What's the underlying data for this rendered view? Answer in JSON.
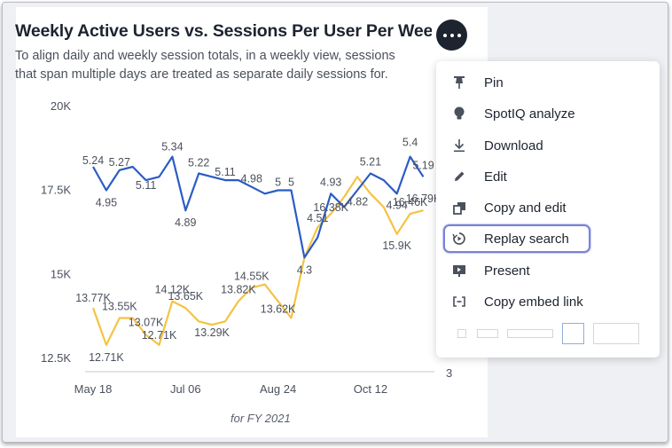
{
  "card": {
    "title": "Weekly Active Users vs. Sessions Per User Per Week,",
    "subtitle_line1": "To align daily and weekly session totals, in a weekly view, sessions",
    "subtitle_line2": "that span multiple days are treated as separate daily sessions for.",
    "footer": "for FY 2021",
    "right_axis_tick": "3"
  },
  "menu": {
    "items": [
      {
        "label": "Pin",
        "icon": "pin-icon"
      },
      {
        "label": "SpotIQ analyze",
        "icon": "bulb-icon"
      },
      {
        "label": "Download",
        "icon": "download-icon"
      },
      {
        "label": "Edit",
        "icon": "pencil-icon"
      },
      {
        "label": "Copy and edit",
        "icon": "copy-icon"
      },
      {
        "label": "Replay search",
        "icon": "replay-icon"
      },
      {
        "label": "Present",
        "icon": "present-icon"
      },
      {
        "label": "Copy embed link",
        "icon": "embed-icon"
      }
    ],
    "focused_item": "Replay search"
  },
  "colors": {
    "blue_series": "#2b5cc5",
    "yellow_series": "#f5c343",
    "focus_ring": "#7b83d6",
    "dark": "#1d232f"
  },
  "chart_data": {
    "type": "line",
    "title": "Weekly Active Users vs. Sessions Per User Per Week,",
    "xlabel": "for FY 2021",
    "ylim": [
      12500,
      20000
    ],
    "y_ticks": [
      "20K",
      "17.5K",
      "15K",
      "12.5K"
    ],
    "y_tick_values": [
      20000,
      17500,
      15000,
      12500
    ],
    "x_ticks": [
      "May 18",
      "Jul 06",
      "Aug 24",
      "Oct 12"
    ],
    "x_tick_weeks": [
      1,
      8,
      15,
      22
    ],
    "weeks": [
      1,
      2,
      3,
      4,
      5,
      6,
      7,
      8,
      9,
      10,
      11,
      12,
      13,
      14,
      15,
      16,
      17,
      18,
      19,
      20,
      21,
      22,
      23,
      24,
      25,
      26
    ],
    "series": [
      {
        "values": [
          18200,
          17500,
          18100,
          18200,
          17800,
          17900,
          18500,
          16900,
          18000,
          17900,
          17800,
          17800,
          17600,
          17400,
          17500,
          17500,
          15500,
          16100,
          17400,
          17000,
          17500,
          18000,
          17800,
          17400,
          18500,
          17900
        ],
        "labels": [
          "5.24",
          "4.95",
          "5.27",
          "",
          "5.11",
          "",
          "5.34",
          "4.89",
          "5.22",
          "",
          "5.11",
          "",
          "4.98",
          "",
          "5",
          "5",
          "4.3",
          "",
          "4.93",
          "",
          "4.82",
          "5.21",
          "",
          "4.94",
          "5.4",
          "5.19"
        ],
        "label_offsets": [
          -3,
          18,
          -5,
          0,
          10,
          0,
          -7,
          18,
          -8,
          0,
          -5,
          0,
          -5,
          0,
          -5,
          -5,
          18,
          0,
          -9,
          0,
          17,
          -9,
          0,
          17,
          -12,
          -9
        ]
      },
      {
        "values": [
          14000,
          12900,
          13700,
          13700,
          13200,
          12900,
          14200,
          14000,
          13600,
          13500,
          13600,
          14200,
          14600,
          14700,
          14200,
          13700,
          15500,
          16400,
          16800,
          17300,
          17900,
          17400,
          17000,
          16200,
          16800,
          16900
        ],
        "labels": [
          "13.77K",
          "12.71K",
          "13.55K",
          "",
          "13.07K",
          "12.71K",
          "14.12K",
          "13.65K",
          "",
          "13.29K",
          "",
          "13.82K",
          "14.55K",
          "",
          "13.62K",
          "",
          "",
          "4.51",
          "16.38K",
          "",
          "",
          "",
          "",
          "15.9K",
          "16.46K",
          "16.79K"
        ],
        "label_offsets": [
          -7,
          18,
          -9,
          0,
          -10,
          -7,
          -9,
          -9,
          0,
          13,
          0,
          -9,
          -9,
          0,
          13,
          0,
          0,
          -6,
          -3,
          0,
          0,
          0,
          0,
          17,
          -9,
          -9
        ]
      }
    ]
  }
}
